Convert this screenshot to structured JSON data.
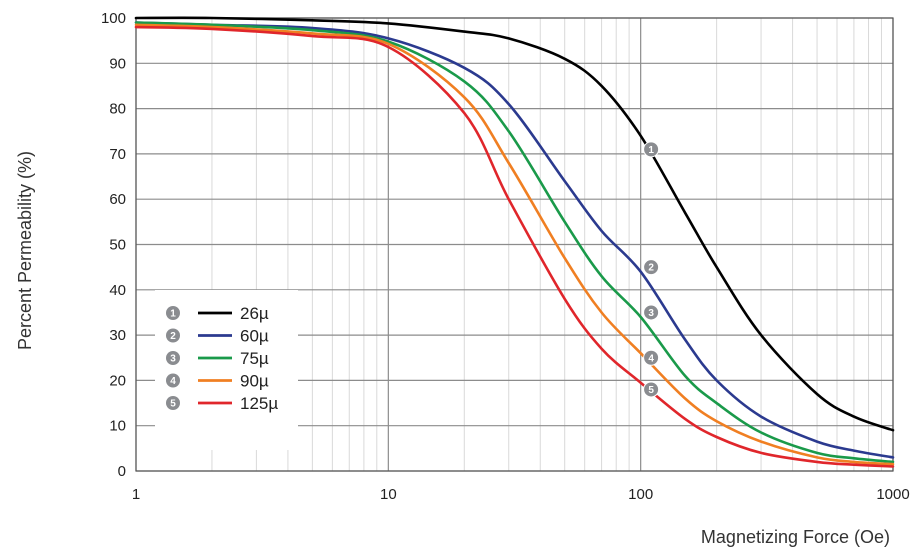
{
  "chart_data": {
    "type": "line",
    "xlabel": "Magnetizing Force (Oe)",
    "ylabel": "Percent Permeability (%)",
    "xscale": "log",
    "xlim": [
      1,
      1000
    ],
    "ylim": [
      0,
      100
    ],
    "x_ticks": [
      "1",
      "10",
      "100",
      "1000"
    ],
    "y_ticks": [
      "0",
      "10",
      "20",
      "30",
      "40",
      "50",
      "60",
      "70",
      "80",
      "90",
      "100"
    ],
    "grid": true,
    "legend_position": "bottom-left",
    "series": [
      {
        "marker": "1",
        "name": "26µ",
        "color": "#000000",
        "x": [
          1,
          2,
          5,
          10,
          20,
          30,
          50,
          70,
          100,
          150,
          200,
          300,
          500,
          700,
          1000
        ],
        "y": [
          100,
          100,
          99.5,
          98.8,
          97,
          95.5,
          91,
          85,
          74,
          57,
          45,
          30,
          17,
          12,
          9
        ]
      },
      {
        "marker": "2",
        "name": "60µ",
        "color": "#2b3a8f",
        "x": [
          1,
          2,
          5,
          10,
          20,
          30,
          50,
          70,
          100,
          150,
          200,
          300,
          500,
          700,
          1000
        ],
        "y": [
          99,
          98.5,
          97.8,
          95.5,
          89,
          81,
          64,
          53,
          44,
          29,
          20,
          12,
          6.5,
          4.5,
          3
        ]
      },
      {
        "marker": "3",
        "name": "75µ",
        "color": "#1a9a4a",
        "x": [
          1,
          2,
          5,
          10,
          20,
          30,
          50,
          70,
          100,
          150,
          200,
          300,
          500,
          700,
          1000
        ],
        "y": [
          99,
          98.5,
          97.3,
          94.8,
          86,
          75,
          55,
          43,
          34,
          21,
          15,
          8.5,
          4,
          2.8,
          2
        ]
      },
      {
        "marker": "4",
        "name": "90µ",
        "color": "#f07f22",
        "x": [
          1,
          2,
          5,
          10,
          20,
          30,
          50,
          70,
          100,
          150,
          200,
          300,
          500,
          700,
          1000
        ],
        "y": [
          98.5,
          98,
          96.6,
          94.3,
          82.5,
          68,
          47,
          35,
          26,
          16,
          11,
          6.5,
          3,
          2,
          1.5
        ]
      },
      {
        "marker": "5",
        "name": "125µ",
        "color": "#e0262b",
        "x": [
          1,
          2,
          5,
          10,
          20,
          30,
          50,
          70,
          100,
          150,
          200,
          300,
          500,
          700,
          1000
        ],
        "y": [
          98,
          97.6,
          96,
          93.6,
          79,
          60,
          38,
          27,
          19.5,
          11.5,
          7.5,
          4,
          2,
          1.4,
          1
        ]
      }
    ],
    "curve_markers": [
      {
        "label": "1",
        "x": 110,
        "y": 71
      },
      {
        "label": "2",
        "x": 110,
        "y": 45
      },
      {
        "label": "3",
        "x": 110,
        "y": 35
      },
      {
        "label": "4",
        "x": 110,
        "y": 25
      },
      {
        "label": "5",
        "x": 110,
        "y": 18
      }
    ]
  }
}
